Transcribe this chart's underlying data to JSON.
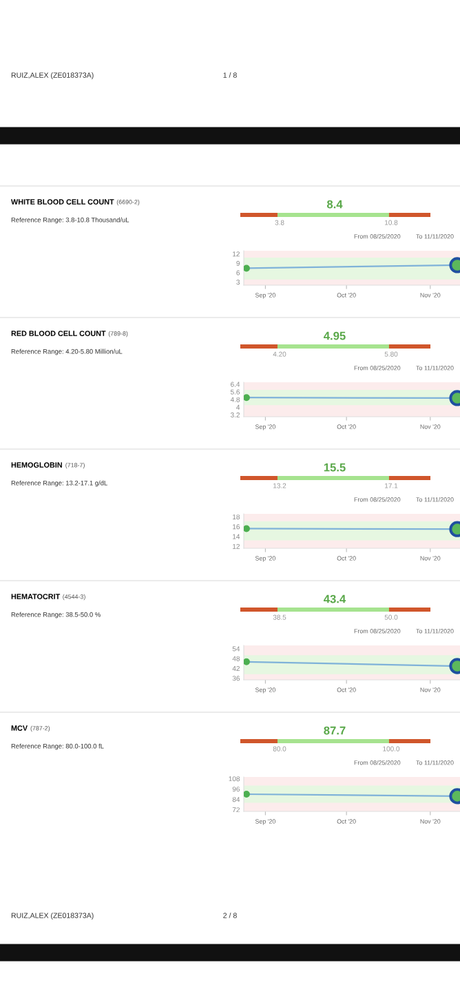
{
  "chart_data": [
    {
      "type": "other",
      "annotations": [
        "RUIZ,ALEX (ZE018373A)",
        "1 / 8"
      ]
    },
    {
      "type": "line",
      "annotations": [
        "WHITE BLOOD CELL COUNT",
        "(6690-2)",
        "Reference Range: 3.8-10.8 Thousand/uL",
        "8.4",
        "3.8",
        "10.8",
        "From 08/25/2020",
        "To 11/11/2020"
      ],
      "x": [
        "2020-08-25",
        "2020-11-11"
      ],
      "series": [
        {
          "color": "#7fb2d9",
          "values": [
            7.4,
            8.4
          ]
        }
      ],
      "marker": "circle",
      "xlim": [
        "2020-08-24",
        "2020-11-12"
      ],
      "ylim": [
        2,
        13
      ],
      "yticks": [
        3,
        6,
        9,
        12
      ],
      "xticks": [
        {
          "value": "2020-09-01",
          "label": "Sep '20"
        },
        {
          "value": "2020-10-01",
          "label": "Oct '20"
        },
        {
          "value": "2020-11-01",
          "label": "Nov '20"
        }
      ],
      "bands": [
        {
          "axis": "y",
          "from": 3.8,
          "to": 10.8,
          "color": "#e6f7e1"
        }
      ]
    },
    {
      "type": "line",
      "annotations": [
        "RED BLOOD CELL COUNT",
        "(789-8)",
        "Reference Range: 4.20-5.80 Million/uL",
        "4.95",
        "4.20",
        "5.80",
        "From 08/25/2020",
        "To 11/11/2020"
      ],
      "x": [
        "2020-08-25",
        "2020-11-11"
      ],
      "series": [
        {
          "color": "#7fb2d9",
          "values": [
            5.0,
            4.95
          ]
        }
      ],
      "marker": "circle",
      "xlim": [
        "2020-08-24",
        "2020-11-12"
      ],
      "ylim": [
        3.0,
        6.6
      ],
      "yticks": [
        3.2,
        4,
        4.8,
        5.6,
        6.4
      ],
      "xticks": [
        {
          "value": "2020-09-01",
          "label": "Sep '20"
        },
        {
          "value": "2020-10-01",
          "label": "Oct '20"
        },
        {
          "value": "2020-11-01",
          "label": "Nov '20"
        }
      ],
      "bands": [
        {
          "axis": "y",
          "from": 4.2,
          "to": 5.8,
          "color": "#e6f7e1"
        }
      ]
    },
    {
      "type": "line",
      "annotations": [
        "HEMOGLOBIN",
        "(718-7)",
        "Reference Range: 13.2-17.1 g/dL",
        "15.5",
        "13.2",
        "17.1",
        "From 08/25/2020",
        "To 11/11/2020"
      ],
      "x": [
        "2020-08-25",
        "2020-11-11"
      ],
      "series": [
        {
          "color": "#7fb2d9",
          "values": [
            15.6,
            15.5
          ]
        }
      ],
      "marker": "circle",
      "xlim": [
        "2020-08-24",
        "2020-11-12"
      ],
      "ylim": [
        11.6,
        18.6
      ],
      "yticks": [
        12,
        14,
        16,
        18
      ],
      "xticks": [
        {
          "value": "2020-09-01",
          "label": "Sep '20"
        },
        {
          "value": "2020-10-01",
          "label": "Oct '20"
        },
        {
          "value": "2020-11-01",
          "label": "Nov '20"
        }
      ],
      "bands": [
        {
          "axis": "y",
          "from": 13.2,
          "to": 17.1,
          "color": "#e6f7e1"
        }
      ]
    },
    {
      "type": "line",
      "annotations": [
        "HEMATOCRIT",
        "(4544-3)",
        "Reference Range: 38.5-50.0 %",
        "43.4",
        "38.5",
        "50.0",
        "From 08/25/2020",
        "To 11/11/2020"
      ],
      "x": [
        "2020-08-25",
        "2020-11-11"
      ],
      "series": [
        {
          "color": "#7fb2d9",
          "values": [
            46,
            43.4
          ]
        }
      ],
      "marker": "circle",
      "xlim": [
        "2020-08-24",
        "2020-11-12"
      ],
      "ylim": [
        35,
        56
      ],
      "yticks": [
        36,
        42,
        48,
        54
      ],
      "xticks": [
        {
          "value": "2020-09-01",
          "label": "Sep '20"
        },
        {
          "value": "2020-10-01",
          "label": "Oct '20"
        },
        {
          "value": "2020-11-01",
          "label": "Nov '20"
        }
      ],
      "bands": [
        {
          "axis": "y",
          "from": 38.5,
          "to": 50.0,
          "color": "#e6f7e1"
        }
      ]
    },
    {
      "type": "line",
      "annotations": [
        "MCV",
        "(787-2)",
        "Reference Range: 80.0-100.0 fL",
        "87.7",
        "80.0",
        "100.0",
        "From 08/25/2020",
        "To 11/11/2020"
      ],
      "x": [
        "2020-08-25",
        "2020-11-11"
      ],
      "series": [
        {
          "color": "#7fb2d9",
          "values": [
            90,
            87.7
          ]
        }
      ],
      "marker": "circle",
      "xlim": [
        "2020-08-24",
        "2020-11-12"
      ],
      "ylim": [
        70,
        110
      ],
      "yticks": [
        72,
        84,
        96,
        108
      ],
      "xticks": [
        {
          "value": "2020-09-01",
          "label": "Sep '20"
        },
        {
          "value": "2020-10-01",
          "label": "Oct '20"
        },
        {
          "value": "2020-11-01",
          "label": "Nov '20"
        }
      ],
      "bands": [
        {
          "axis": "y",
          "from": 80.0,
          "to": 100.0,
          "color": "#e6f7e1"
        }
      ]
    },
    {
      "type": "other",
      "annotations": [
        "RUIZ,ALEX (ZE018373A)",
        "2 / 8"
      ]
    }
  ]
}
